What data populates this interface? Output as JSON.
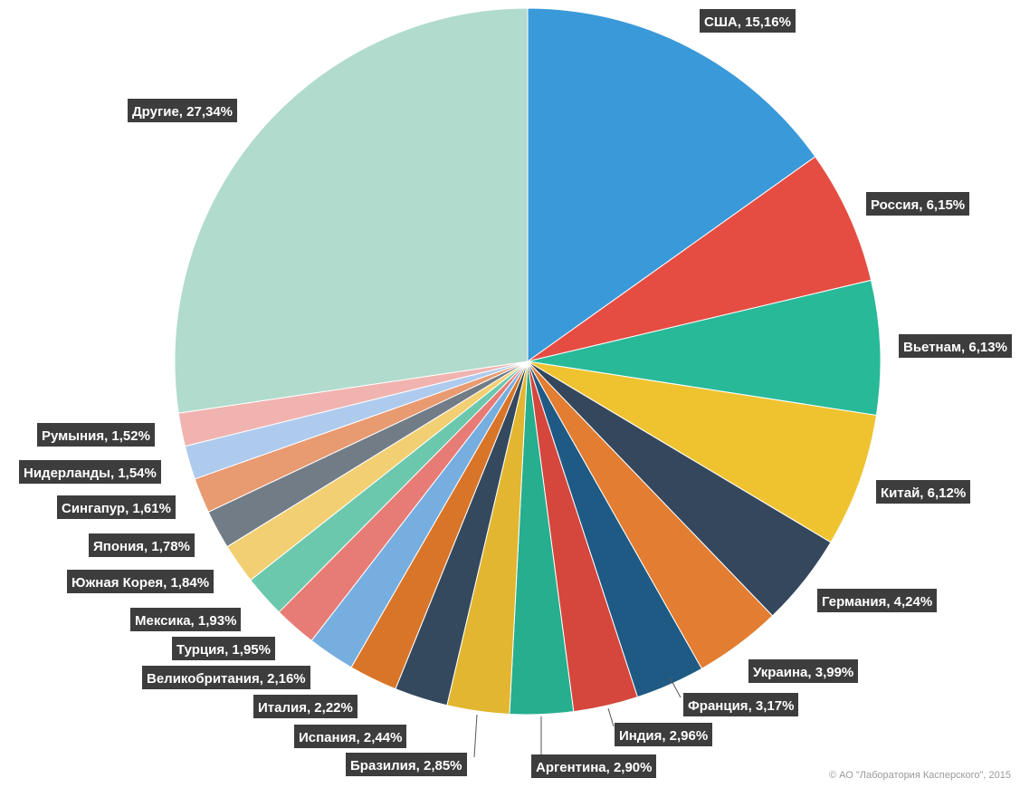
{
  "chart_data": {
    "type": "pie",
    "slices": [
      {
        "label": "США",
        "value": 15.16,
        "display": "США, 15,16%",
        "color": "#3a99d9"
      },
      {
        "label": "Россия",
        "value": 6.15,
        "display": "Россия, 6,15%",
        "color": "#e54d42"
      },
      {
        "label": "Вьетнам",
        "value": 6.13,
        "display": "Вьетнам, 6,13%",
        "color": "#28b999"
      },
      {
        "label": "Китай",
        "value": 6.12,
        "display": "Китай, 6,12%",
        "color": "#efc330"
      },
      {
        "label": "Германия",
        "value": 4.24,
        "display": "Германия, 4,24%",
        "color": "#35475c"
      },
      {
        "label": "Украина",
        "value": 3.99,
        "display": "Украина, 3,99%",
        "color": "#e27d31"
      },
      {
        "label": "Франция",
        "value": 3.17,
        "display": "Франция, 3,17%",
        "color": "#1f5a85"
      },
      {
        "label": "Индия",
        "value": 2.96,
        "display": "Индия, 2,96%",
        "color": "#d5463d"
      },
      {
        "label": "Аргентина",
        "value": 2.9,
        "display": "Аргентина, 2,90%",
        "color": "#26ae8e"
      },
      {
        "label": "Бразилия",
        "value": 2.85,
        "display": "Бразилия, 2,85%",
        "color": "#e2b630"
      },
      {
        "label": "Испания",
        "value": 2.44,
        "display": "Испания, 2,44%",
        "color": "#34495e"
      },
      {
        "label": "Италия",
        "value": 2.22,
        "display": "Италия, 2,22%",
        "color": "#d87528"
      },
      {
        "label": "Великобритания",
        "value": 2.16,
        "display": "Великобритания, 2,16%",
        "color": "#77aee0"
      },
      {
        "label": "Турция",
        "value": 1.95,
        "display": "Турция, 1,95%",
        "color": "#e77c76"
      },
      {
        "label": "Мексика",
        "value": 1.93,
        "display": "Мексика, 1,93%",
        "color": "#6cc8ad"
      },
      {
        "label": "Южная Корея",
        "value": 1.84,
        "display": "Южная Корея, 1,84%",
        "color": "#f2cf72"
      },
      {
        "label": "Япония",
        "value": 1.78,
        "display": "Япония, 1,78%",
        "color": "#717c87"
      },
      {
        "label": "Сингапур",
        "value": 1.61,
        "display": "Сингапур, 1,61%",
        "color": "#e89a70"
      },
      {
        "label": "Нидерланды",
        "value": 1.54,
        "display": "Нидерланды, 1,54%",
        "color": "#aecbee"
      },
      {
        "label": "Румыния",
        "value": 1.52,
        "display": "Румыния, 1,52%",
        "color": "#f0b3b0"
      },
      {
        "label": "Другие",
        "value": 27.34,
        "display": "Другие, 27,34%",
        "color": "#b1dbcd"
      }
    ],
    "start_angle": "12 o'clock",
    "direction": "clockwise"
  },
  "footer": {
    "copyright": "© АО \"Лаборатория Касперского\", 2015"
  }
}
